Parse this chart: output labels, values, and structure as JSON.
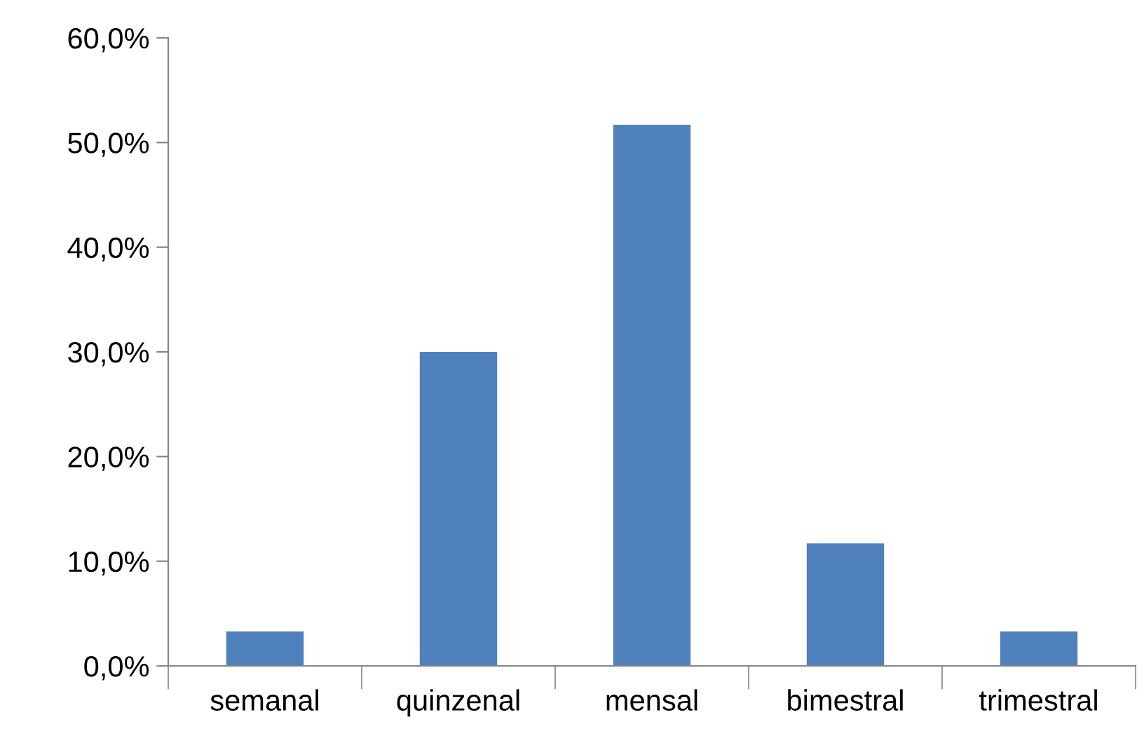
{
  "chart_data": {
    "type": "bar",
    "categories": [
      "semanal",
      "quinzenal",
      "mensal",
      "bimestral",
      "trimestral"
    ],
    "values": [
      3.3,
      30.0,
      51.7,
      11.7,
      3.3
    ],
    "color": "#4f81bd",
    "ylim": [
      0,
      60
    ],
    "yticks": [
      {
        "value": 0,
        "label": "0,0%"
      },
      {
        "value": 10,
        "label": "10,0%"
      },
      {
        "value": 20,
        "label": "20,0%"
      },
      {
        "value": 30,
        "label": "30,0%"
      },
      {
        "value": 40,
        "label": "40,0%"
      },
      {
        "value": 50,
        "label": "50,0%"
      },
      {
        "value": 60,
        "label": "60,0%"
      }
    ],
    "grid": false,
    "legend": false
  }
}
